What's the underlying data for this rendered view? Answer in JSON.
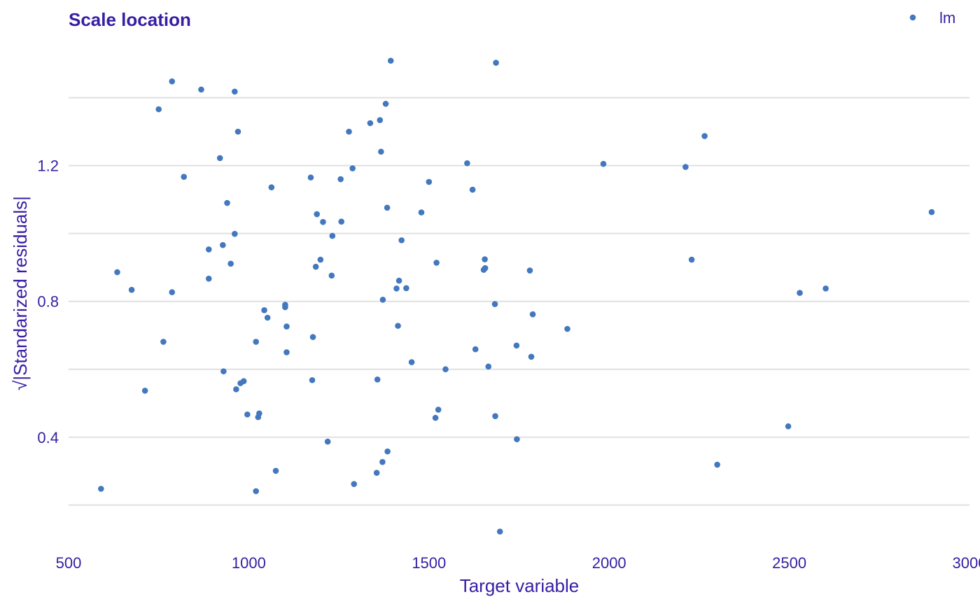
{
  "colors": {
    "text": "#371EA3",
    "point": "#4378BF",
    "grid": "#E0E0E0",
    "background": "#FFFFFF"
  },
  "chart_data": {
    "type": "scatter",
    "title": "Scale location",
    "xlabel": "Target variable",
    "ylabel": "√|Standarized residuals|",
    "xlim": [
      500,
      3000
    ],
    "ylim": [
      0.08,
      1.56
    ],
    "x_ticks": [
      500,
      1000,
      1500,
      2000,
      2500,
      3000
    ],
    "x_tick_labels": [
      "500",
      "1000",
      "1500",
      "2000",
      "2500",
      "3000"
    ],
    "y_ticks": [
      0.4,
      0.8,
      1.2
    ],
    "y_tick_labels": [
      "0.4",
      "0.8",
      "1.2"
    ],
    "y_minor_grid": [
      0.2,
      0.6,
      1.0,
      1.4
    ],
    "grid": "horizontal",
    "legend_position": "top-right",
    "series": [
      {
        "name": "lm",
        "color": "#4378BF",
        "points": [
          [
            590,
            0.248
          ],
          [
            635,
            0.886
          ],
          [
            675,
            0.834
          ],
          [
            712,
            0.537
          ],
          [
            750,
            1.366
          ],
          [
            763,
            0.681
          ],
          [
            787,
            1.448
          ],
          [
            787,
            0.827
          ],
          [
            820,
            1.167
          ],
          [
            868,
            1.424
          ],
          [
            889,
            0.953
          ],
          [
            889,
            0.867
          ],
          [
            920,
            1.222
          ],
          [
            928,
            0.966
          ],
          [
            930,
            0.594
          ],
          [
            940,
            1.09
          ],
          [
            950,
            0.911
          ],
          [
            961,
            1.418
          ],
          [
            961,
            0.999
          ],
          [
            965,
            0.541
          ],
          [
            970,
            1.3
          ],
          [
            977,
            0.559
          ],
          [
            986,
            0.565
          ],
          [
            996,
            0.467
          ],
          [
            1020,
            0.681
          ],
          [
            1020,
            0.241
          ],
          [
            1026,
            0.459
          ],
          [
            1029,
            0.47
          ],
          [
            1043,
            0.774
          ],
          [
            1052,
            0.752
          ],
          [
            1063,
            1.136
          ],
          [
            1075,
            0.301
          ],
          [
            1101,
            0.79
          ],
          [
            1101,
            0.783
          ],
          [
            1105,
            0.726
          ],
          [
            1105,
            0.65
          ],
          [
            1172,
            1.165
          ],
          [
            1176,
            0.568
          ],
          [
            1178,
            0.695
          ],
          [
            1186,
            0.902
          ],
          [
            1189,
            1.057
          ],
          [
            1199,
            0.923
          ],
          [
            1206,
            1.034
          ],
          [
            1219,
            0.387
          ],
          [
            1230,
            0.876
          ],
          [
            1232,
            0.993
          ],
          [
            1255,
            1.16
          ],
          [
            1257,
            1.035
          ],
          [
            1278,
            1.3
          ],
          [
            1288,
            1.192
          ],
          [
            1292,
            0.262
          ],
          [
            1337,
            1.325
          ],
          [
            1355,
            0.295
          ],
          [
            1357,
            0.57
          ],
          [
            1364,
            1.334
          ],
          [
            1367,
            1.241
          ],
          [
            1371,
            0.327
          ],
          [
            1372,
            0.805
          ],
          [
            1380,
            1.382
          ],
          [
            1384,
            1.076
          ],
          [
            1385,
            0.358
          ],
          [
            1394,
            1.509
          ],
          [
            1410,
            0.838
          ],
          [
            1414,
            0.728
          ],
          [
            1417,
            0.861
          ],
          [
            1424,
            0.98
          ],
          [
            1437,
            0.839
          ],
          [
            1452,
            0.621
          ],
          [
            1479,
            1.062
          ],
          [
            1500,
            1.152
          ],
          [
            1518,
            0.457
          ],
          [
            1521,
            0.914
          ],
          [
            1526,
            0.481
          ],
          [
            1546,
            0.6
          ],
          [
            1606,
            1.207
          ],
          [
            1621,
            1.129
          ],
          [
            1629,
            0.659
          ],
          [
            1652,
            0.893
          ],
          [
            1655,
            0.924
          ],
          [
            1656,
            0.898
          ],
          [
            1665,
            0.608
          ],
          [
            1683,
            0.792
          ],
          [
            1684,
            0.462
          ],
          [
            1686,
            1.503
          ],
          [
            1697,
            0.122
          ],
          [
            1743,
            0.67
          ],
          [
            1744,
            0.394
          ],
          [
            1780,
            0.891
          ],
          [
            1784,
            0.637
          ],
          [
            1788,
            0.762
          ],
          [
            1884,
            0.719
          ],
          [
            1984,
            1.205
          ],
          [
            2212,
            1.196
          ],
          [
            2229,
            0.923
          ],
          [
            2265,
            1.287
          ],
          [
            2300,
            0.319
          ],
          [
            2497,
            0.432
          ],
          [
            2529,
            0.825
          ],
          [
            2601,
            0.838
          ],
          [
            2895,
            1.063
          ]
        ]
      }
    ]
  }
}
